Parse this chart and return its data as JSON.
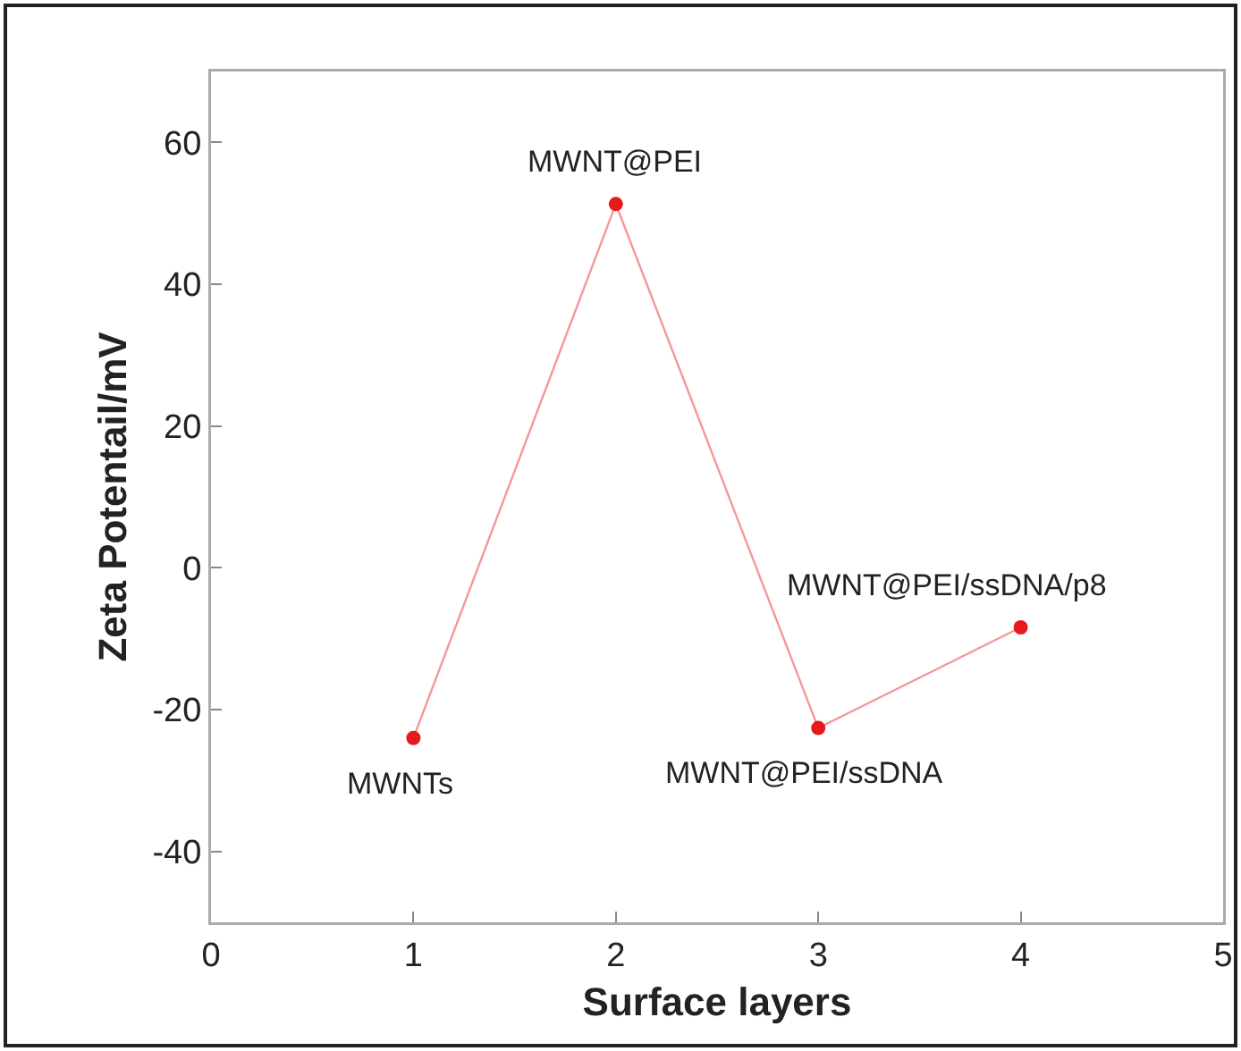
{
  "chart_data": {
    "type": "line",
    "xlabel": "Surface layers",
    "ylabel": "Zeta Potentail/mV",
    "x": [
      1,
      2,
      3,
      4
    ],
    "series": [
      {
        "color": "#e41a1c",
        "values": [
          -24,
          51.3,
          -22.6,
          -8.4
        ]
      }
    ],
    "xlim": [
      0,
      5
    ],
    "xticks": [
      0,
      1,
      2,
      3,
      4,
      5
    ],
    "ylim": [
      -50,
      70
    ],
    "yticks": [
      -40,
      -20,
      0,
      20,
      40,
      60
    ],
    "grid": false,
    "marker": "circle",
    "line_style": "solid",
    "annotations": [
      {
        "text": "MWNTs",
        "x": 1,
        "y": -24
      },
      {
        "text": "MWNT@PEI",
        "x": 2,
        "y": 51.3
      },
      {
        "text": "MWNT@PEI/ssDNA",
        "x": 3,
        "y": -22.6
      },
      {
        "text": "MWNT@PEI/ssDNA/p8",
        "x": 4,
        "y": -8.4
      }
    ]
  }
}
